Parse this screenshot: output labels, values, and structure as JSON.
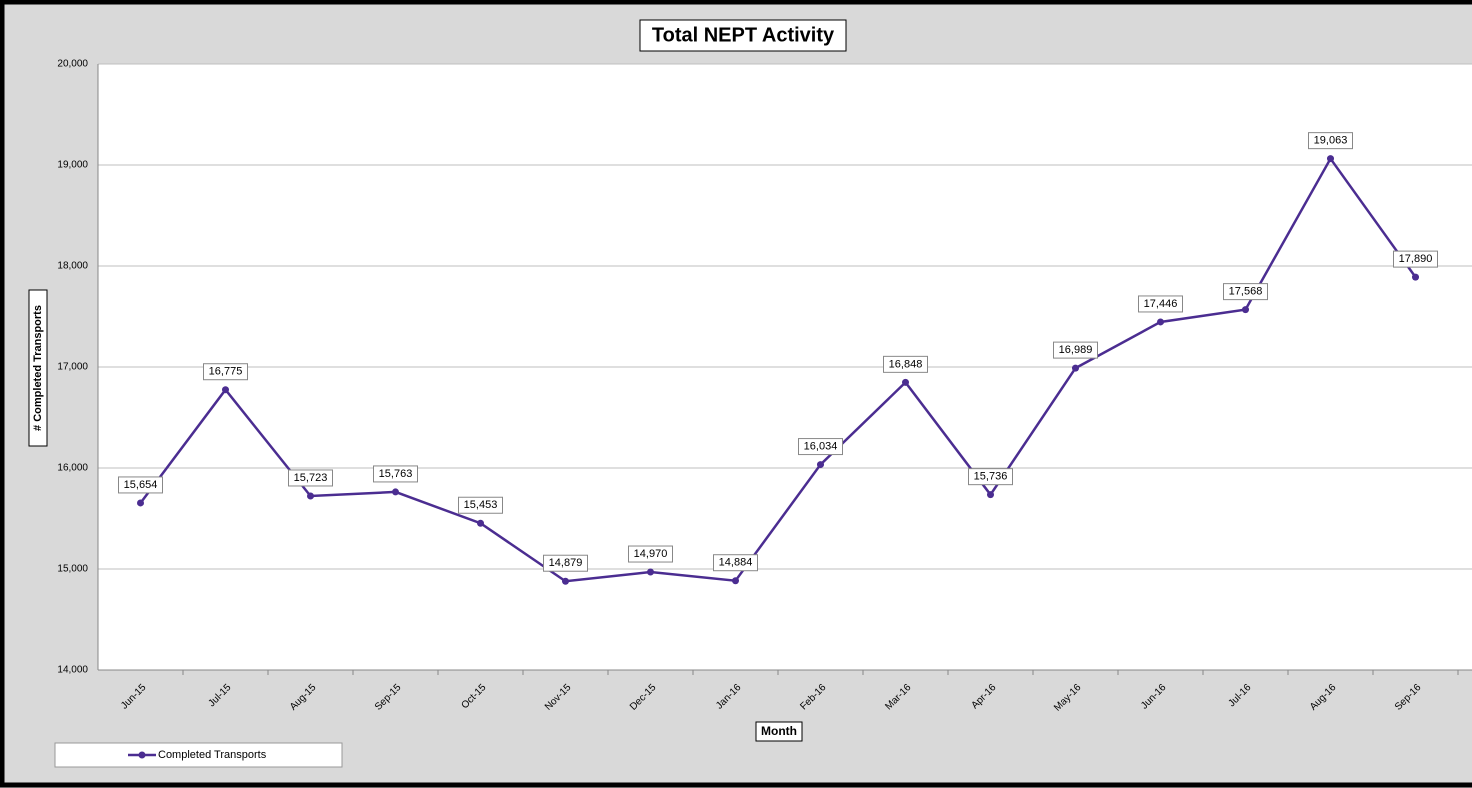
{
  "chart_data": {
    "type": "line",
    "title": "Total NEPT Activity",
    "x_label": "Month",
    "y_label": "# Completed Transports",
    "categories": [
      "Jun-15",
      "Jul-15",
      "Aug-15",
      "Sep-15",
      "Oct-15",
      "Nov-15",
      "Dec-15",
      "Jan-16",
      "Feb-16",
      "Mar-16",
      "Apr-16",
      "May-16",
      "Jun-16",
      "Jul-16",
      "Aug-16",
      "Sep-16"
    ],
    "series": [
      {
        "name": "Completed Transports",
        "color": "#4b2d91",
        "values": [
          15654,
          16775,
          15723,
          15763,
          15453,
          14879,
          14970,
          14884,
          16034,
          16848,
          15736,
          16989,
          17446,
          17568,
          19063,
          17890
        ],
        "value_labels": [
          "15,654",
          "16,775",
          "15,723",
          "15,763",
          "15,453",
          "14,879",
          "14,970",
          "14,884",
          "16,034",
          "16,848",
          "15,736",
          "16,989",
          "17,446",
          "17,568",
          "19,063",
          "17,890"
        ]
      }
    ],
    "ylim": [
      14000,
      20000
    ],
    "yticks": [
      {
        "value": 14000,
        "label": "14,000"
      },
      {
        "value": 15000,
        "label": "15,000"
      },
      {
        "value": 16000,
        "label": "16,000"
      },
      {
        "value": 17000,
        "label": "17,000"
      },
      {
        "value": 18000,
        "label": "18,000"
      },
      {
        "value": 19000,
        "label": "19,000"
      },
      {
        "value": 20000,
        "label": "20,000"
      }
    ],
    "grid": true,
    "legend": "bottom-left"
  }
}
